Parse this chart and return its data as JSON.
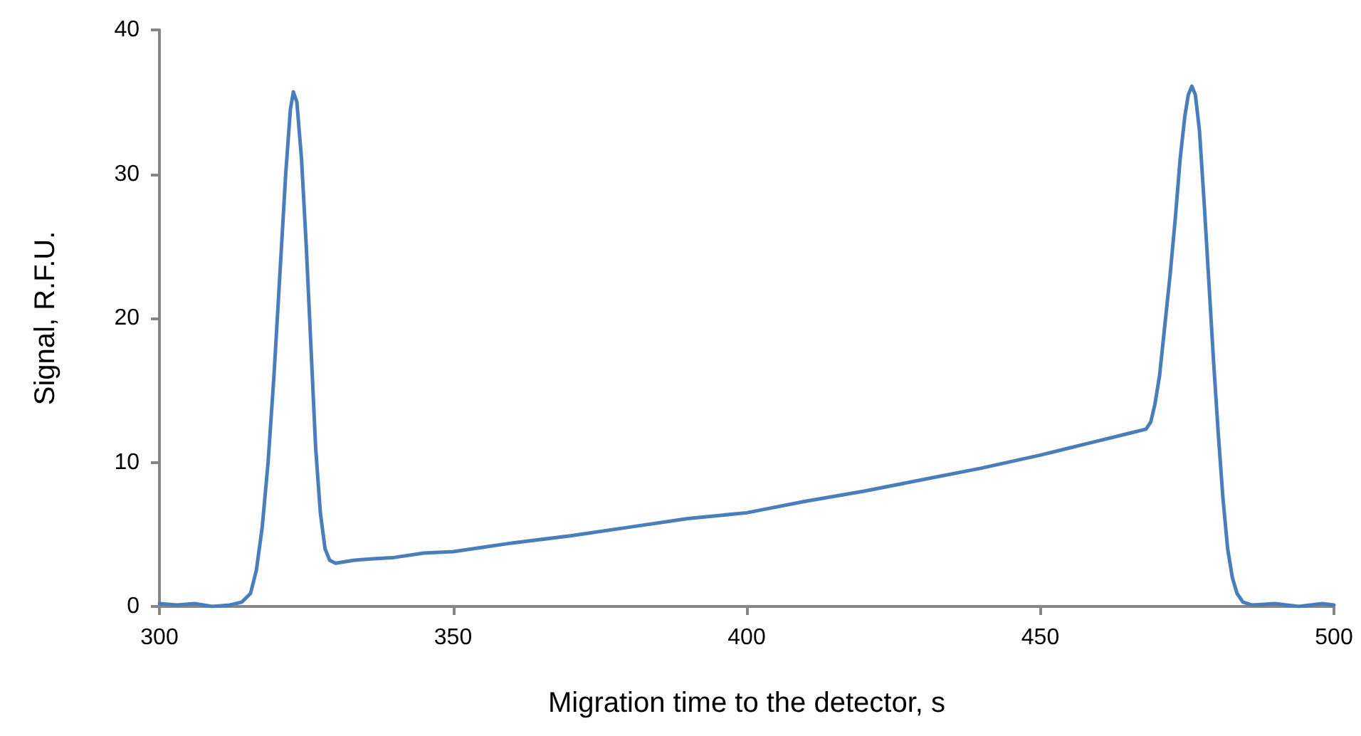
{
  "chart_data": {
    "type": "line",
    "xlabel": "Migration time to the detector, s",
    "ylabel": "Signal, R.F.U.",
    "series": [
      {
        "color": "#4a7ebb",
        "x": [
          300,
          303,
          306,
          309,
          312,
          314,
          315.5,
          316.5,
          317.5,
          318.5,
          319.5,
          320.5,
          321.5,
          322.3,
          322.8,
          323.4,
          324.2,
          325,
          325.8,
          326.6,
          327.4,
          328.2,
          329,
          330,
          333,
          336,
          340,
          345,
          350,
          355,
          360,
          370,
          380,
          390,
          400,
          410,
          420,
          430,
          440,
          450,
          455,
          460,
          465,
          468,
          468.8,
          469.5,
          470.3,
          471.2,
          472.1,
          473,
          473.8,
          474.6,
          475.2,
          475.8,
          476.4,
          477.1,
          477.9,
          478.7,
          479.5,
          480.3,
          481.1,
          481.9,
          482.7,
          483.5,
          484.5,
          486,
          490,
          494,
          498,
          500
        ],
        "values": [
          0.2,
          0.1,
          0.2,
          0,
          0.1,
          0.3,
          0.9,
          2.5,
          5.5,
          10,
          16,
          23,
          30,
          34.5,
          35.7,
          35,
          31,
          25,
          18,
          11,
          6.5,
          4,
          3.2,
          3,
          3.2,
          3.3,
          3.4,
          3.7,
          3.8,
          4.1,
          4.4,
          4.9,
          5.5,
          6.1,
          6.5,
          7.3,
          8,
          8.8,
          9.6,
          10.5,
          11,
          11.5,
          12,
          12.3,
          12.8,
          14,
          16,
          19.5,
          23,
          27,
          31,
          34,
          35.5,
          36.1,
          35.5,
          33,
          28,
          22.5,
          17,
          12,
          7.5,
          4,
          2,
          0.9,
          0.3,
          0.1,
          0.2,
          0,
          0.2,
          0.1
        ]
      }
    ],
    "xlim": [
      300,
      500
    ],
    "xticks": [
      300,
      350,
      400,
      450,
      500
    ],
    "ylim": [
      0,
      40
    ],
    "yticks": [
      0,
      10,
      20,
      30,
      40
    ],
    "marker": "none",
    "line_style": "solid"
  }
}
